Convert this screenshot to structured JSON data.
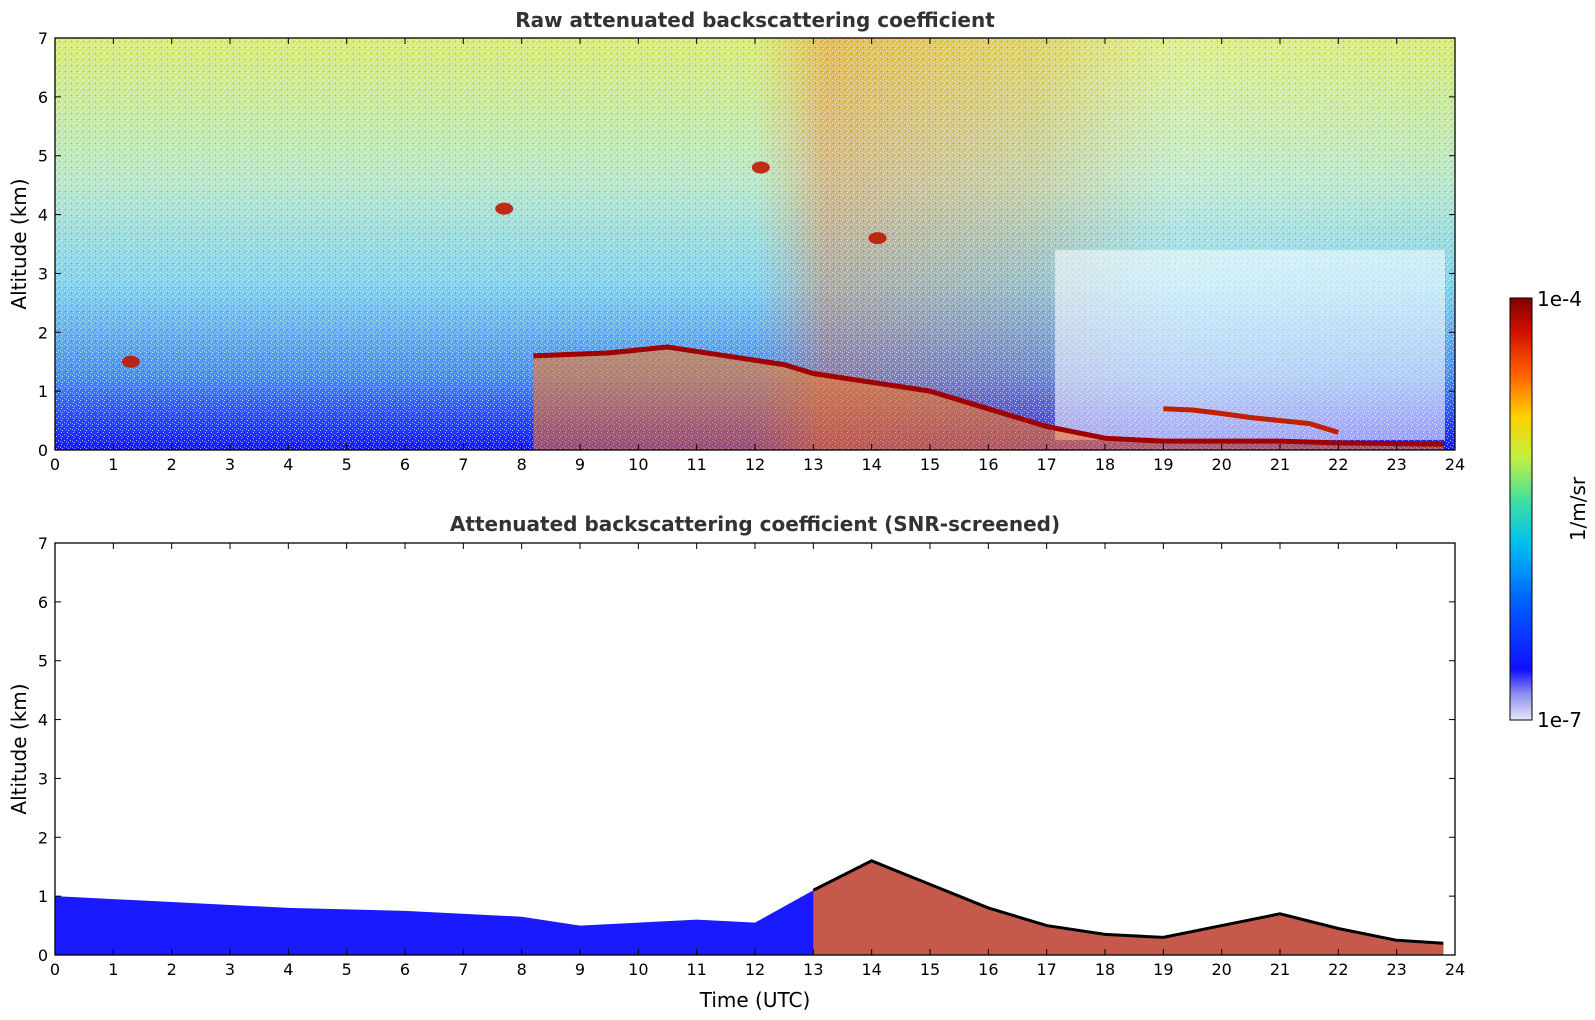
{
  "chart_data": [
    {
      "type": "heatmap",
      "title": "Raw attenuated backscattering coefficient",
      "xlabel": "",
      "ylabel": "Altitude (km)",
      "xlim": [
        0,
        24
      ],
      "ylim": [
        0,
        7
      ],
      "x_ticks": [
        "0",
        "1",
        "2",
        "3",
        "4",
        "5",
        "6",
        "7",
        "8",
        "9",
        "10",
        "11",
        "12",
        "13",
        "14",
        "15",
        "16",
        "17",
        "18",
        "19",
        "20",
        "21",
        "22",
        "23",
        "24"
      ],
      "y_ticks": [
        "0",
        "1",
        "2",
        "3",
        "4",
        "5",
        "6",
        "7"
      ],
      "color_scale": "log",
      "features": [
        {
          "feature": "boundary layer top",
          "points": [
            [
              8.2,
              1.6
            ],
            [
              9.5,
              1.65
            ],
            [
              10.5,
              1.75
            ],
            [
              11.5,
              1.6
            ],
            [
              12.5,
              1.45
            ],
            [
              13.0,
              1.3
            ],
            [
              14.0,
              1.15
            ],
            [
              15.0,
              1.0
            ],
            [
              16.0,
              0.7
            ],
            [
              17.0,
              0.4
            ],
            [
              18.0,
              0.2
            ],
            [
              19.0,
              0.15
            ],
            [
              20.0,
              0.15
            ],
            [
              21.0,
              0.15
            ],
            [
              22.0,
              0.12
            ],
            [
              23.8,
              0.1
            ]
          ]
        },
        {
          "feature": "elevated layer",
          "points": [
            [
              19.0,
              0.7
            ],
            [
              19.5,
              0.68
            ],
            [
              20.0,
              0.62
            ],
            [
              20.5,
              0.55
            ],
            [
              21.0,
              0.5
            ],
            [
              21.5,
              0.45
            ],
            [
              22.0,
              0.3
            ]
          ]
        },
        {
          "feature": "cloud patches",
          "points": [
            [
              12.1,
              4.8
            ],
            [
              14.1,
              3.6
            ],
            [
              7.7,
              4.1
            ],
            [
              1.3,
              1.5
            ]
          ]
        }
      ]
    },
    {
      "type": "heatmap",
      "title": "Attenuated backscattering coefficient (SNR-screened)",
      "xlabel": "Time (UTC)",
      "ylabel": "Altitude (km)",
      "xlim": [
        0,
        24
      ],
      "ylim": [
        0,
        7
      ],
      "x_ticks": [
        "0",
        "1",
        "2",
        "3",
        "4",
        "5",
        "6",
        "7",
        "8",
        "9",
        "10",
        "11",
        "12",
        "13",
        "14",
        "15",
        "16",
        "17",
        "18",
        "19",
        "20",
        "21",
        "22",
        "23",
        "24"
      ],
      "y_ticks": [
        "0",
        "1",
        "2",
        "3",
        "4",
        "5",
        "6",
        "7"
      ],
      "color_scale": "log",
      "features": [
        {
          "feature": "screened signal top",
          "points": [
            [
              0,
              1.0
            ],
            [
              2,
              0.9
            ],
            [
              4,
              0.8
            ],
            [
              6,
              0.75
            ],
            [
              8,
              0.65
            ],
            [
              9,
              0.5
            ],
            [
              10,
              0.55
            ],
            [
              11,
              0.6
            ],
            [
              12,
              0.55
            ],
            [
              13,
              1.1
            ],
            [
              14,
              1.6
            ],
            [
              15,
              1.2
            ],
            [
              16,
              0.8
            ],
            [
              17,
              0.5
            ],
            [
              18,
              0.35
            ],
            [
              19,
              0.3
            ],
            [
              20,
              0.5
            ],
            [
              21,
              0.7
            ],
            [
              22,
              0.45
            ],
            [
              23,
              0.25
            ],
            [
              23.8,
              0.2
            ]
          ]
        }
      ]
    }
  ],
  "colorbar": {
    "label": "1/m/sr",
    "max_label": "1e-4",
    "min_label": "1e-7",
    "colors": [
      "#e8e8f8",
      "#9090f0",
      "#1010ff",
      "#0060ff",
      "#00c0f0",
      "#40e0a0",
      "#c0f040",
      "#ffd000",
      "#ff6000",
      "#d01000",
      "#800000"
    ]
  }
}
